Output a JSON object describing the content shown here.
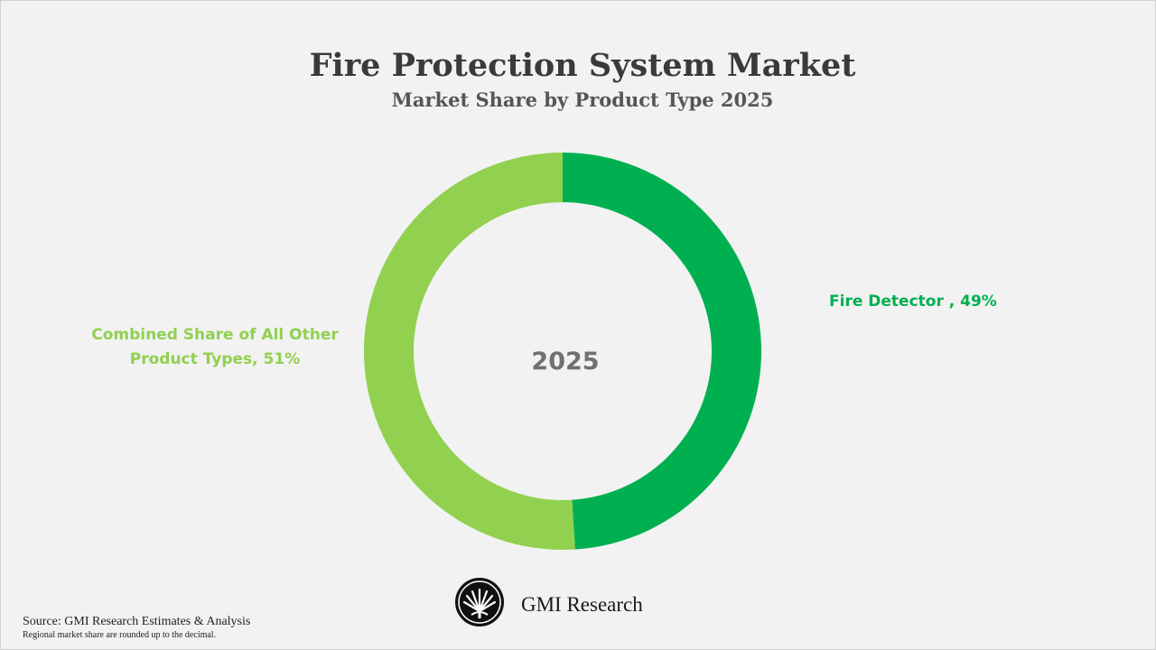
{
  "title": "Fire Protection System Market",
  "subtitle": "Market Share by Product Type 2025",
  "center_label": "2025",
  "brand": "GMI Research",
  "logo_icon": "palm-fan-logo-icon",
  "source": "Source: GMI Research Estimates & Analysis",
  "note": "Regional market share are rounded up to the decimal.",
  "labels": {
    "fire_detector": "Fire Detector , 49%",
    "others_line1": "Combined Share of All Other",
    "others_line2": "Product Types, 51%"
  },
  "colors": {
    "fire_detector": "#00b050",
    "others": "#92d050",
    "background": "#f2f2f2"
  },
  "chart_data": {
    "type": "pie",
    "variant": "donut",
    "title": "Fire Protection System Market",
    "subtitle": "Market Share by Product Type 2025",
    "center_text": "2025",
    "slices": [
      {
        "label": "Fire Detector",
        "value": 49,
        "unit": "%",
        "color": "#00b050"
      },
      {
        "label": "Combined Share of All Other Product Types",
        "value": 51,
        "unit": "%",
        "color": "#92d050"
      }
    ],
    "start": "top",
    "direction": "clockwise"
  }
}
